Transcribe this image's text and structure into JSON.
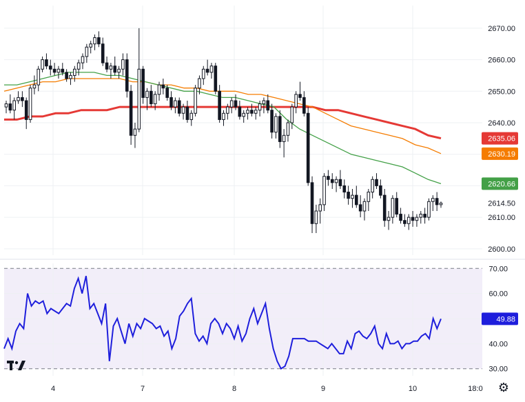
{
  "chart_data": [
    {
      "type": "candlestick",
      "xaxis_labels": [
        "4",
        "7",
        "8",
        "9",
        "10",
        "18:0"
      ],
      "yaxis_ticks": [
        "2670.00",
        "2660.00",
        "2650.00",
        "2640.00",
        "2630.00",
        "2620.00",
        "2610.00",
        "2600.00"
      ],
      "ylim": [
        2598,
        2675
      ],
      "price_tick": "2614.50",
      "grid": true,
      "candles": [
        [
          2645,
          2647,
          2643,
          2646
        ],
        [
          2646,
          2649,
          2643,
          2644
        ],
        [
          2644,
          2648,
          2641,
          2647
        ],
        [
          2647,
          2650,
          2646,
          2648
        ],
        [
          2648,
          2650,
          2645,
          2647
        ],
        [
          2647,
          2648,
          2638,
          2641
        ],
        [
          2641,
          2652,
          2640,
          2651
        ],
        [
          2651,
          2655,
          2649,
          2652
        ],
        [
          2652,
          2658,
          2650,
          2657
        ],
        [
          2657,
          2661,
          2656,
          2660
        ],
        [
          2660,
          2662,
          2657,
          2658
        ],
        [
          2658,
          2660,
          2655,
          2657
        ],
        [
          2657,
          2659,
          2655,
          2656
        ],
        [
          2656,
          2658,
          2654,
          2657
        ],
        [
          2657,
          2659,
          2655,
          2656
        ],
        [
          2656,
          2657,
          2653,
          2654
        ],
        [
          2654,
          2656,
          2652,
          2655
        ],
        [
          2655,
          2658,
          2653,
          2657
        ],
        [
          2657,
          2660,
          2655,
          2659
        ],
        [
          2659,
          2662,
          2657,
          2661
        ],
        [
          2661,
          2665,
          2659,
          2664
        ],
        [
          2664,
          2666,
          2662,
          2665
        ],
        [
          2665,
          2668,
          2663,
          2667
        ],
        [
          2667,
          2669,
          2664,
          2665
        ],
        [
          2665,
          2667,
          2658,
          2659
        ],
        [
          2659,
          2661,
          2656,
          2657
        ],
        [
          2657,
          2659,
          2654,
          2658
        ],
        [
          2658,
          2661,
          2655,
          2656
        ],
        [
          2656,
          2658,
          2654,
          2657
        ],
        [
          2657,
          2662,
          2655,
          2660
        ],
        [
          2660,
          2662,
          2648,
          2650
        ],
        [
          2650,
          2652,
          2633,
          2636
        ],
        [
          2636,
          2640,
          2632,
          2638
        ],
        [
          2638,
          2670,
          2637,
          2657
        ],
        [
          2657,
          2658,
          2646,
          2648
        ],
        [
          2648,
          2651,
          2644,
          2650
        ],
        [
          2650,
          2652,
          2645,
          2646
        ],
        [
          2646,
          2650,
          2644,
          2649
        ],
        [
          2649,
          2653,
          2647,
          2652
        ],
        [
          2652,
          2654,
          2649,
          2651
        ],
        [
          2651,
          2652,
          2647,
          2648
        ],
        [
          2648,
          2650,
          2644,
          2645
        ],
        [
          2645,
          2648,
          2643,
          2647
        ],
        [
          2647,
          2648,
          2642,
          2643
        ],
        [
          2643,
          2646,
          2641,
          2645
        ],
        [
          2645,
          2647,
          2640,
          2641
        ],
        [
          2641,
          2644,
          2639,
          2643
        ],
        [
          2643,
          2652,
          2642,
          2651
        ],
        [
          2651,
          2655,
          2649,
          2654
        ],
        [
          2654,
          2658,
          2652,
          2657
        ],
        [
          2657,
          2660,
          2655,
          2656
        ],
        [
          2656,
          2659,
          2654,
          2658
        ],
        [
          2658,
          2659,
          2649,
          2650
        ],
        [
          2650,
          2652,
          2640,
          2641
        ],
        [
          2641,
          2644,
          2639,
          2643
        ],
        [
          2643,
          2646,
          2641,
          2645
        ],
        [
          2645,
          2648,
          2643,
          2647
        ],
        [
          2647,
          2649,
          2644,
          2645
        ],
        [
          2645,
          2647,
          2641,
          2642
        ],
        [
          2642,
          2644,
          2640,
          2643
        ],
        [
          2643,
          2645,
          2641,
          2644
        ],
        [
          2644,
          2646,
          2642,
          2643
        ],
        [
          2643,
          2645,
          2641,
          2644
        ],
        [
          2644,
          2647,
          2642,
          2646
        ],
        [
          2646,
          2648,
          2643,
          2647
        ],
        [
          2647,
          2649,
          2643,
          2644
        ],
        [
          2644,
          2646,
          2635,
          2637
        ],
        [
          2637,
          2643,
          2635,
          2642
        ],
        [
          2642,
          2644,
          2632,
          2634
        ],
        [
          2634,
          2638,
          2629,
          2636
        ],
        [
          2636,
          2641,
          2634,
          2640
        ],
        [
          2640,
          2646,
          2638,
          2645
        ],
        [
          2645,
          2650,
          2643,
          2649
        ],
        [
          2649,
          2653,
          2647,
          2648
        ],
        [
          2648,
          2650,
          2642,
          2643
        ],
        [
          2643,
          2645,
          2620,
          2621
        ],
        [
          2621,
          2623,
          2605,
          2608
        ],
        [
          2608,
          2614,
          2605,
          2612
        ],
        [
          2612,
          2616,
          2608,
          2614
        ],
        [
          2614,
          2624,
          2612,
          2623
        ],
        [
          2623,
          2625,
          2620,
          2622
        ],
        [
          2622,
          2624,
          2619,
          2621
        ],
        [
          2621,
          2623,
          2618,
          2622
        ],
        [
          2622,
          2625,
          2619,
          2620
        ],
        [
          2620,
          2622,
          2616,
          2618
        ],
        [
          2618,
          2620,
          2614,
          2616
        ],
        [
          2616,
          2619,
          2613,
          2617
        ],
        [
          2617,
          2620,
          2613,
          2614
        ],
        [
          2614,
          2617,
          2610,
          2612
        ],
        [
          2612,
          2616,
          2609,
          2615
        ],
        [
          2615,
          2619,
          2612,
          2618
        ],
        [
          2618,
          2623,
          2616,
          2622
        ],
        [
          2622,
          2624,
          2619,
          2620
        ],
        [
          2620,
          2622,
          2616,
          2617
        ],
        [
          2617,
          2619,
          2607,
          2609
        ],
        [
          2609,
          2612,
          2606,
          2610
        ],
        [
          2610,
          2617,
          2608,
          2616
        ],
        [
          2616,
          2618,
          2610,
          2611
        ],
        [
          2611,
          2613,
          2608,
          2609
        ],
        [
          2609,
          2611,
          2607,
          2608
        ],
        [
          2608,
          2611,
          2606,
          2610
        ],
        [
          2610,
          2612,
          2607,
          2609
        ],
        [
          2609,
          2611,
          2607,
          2610
        ],
        [
          2610,
          2612,
          2608,
          2611
        ],
        [
          2611,
          2613,
          2608,
          2610
        ],
        [
          2610,
          2616,
          2609,
          2615
        ],
        [
          2615,
          2617,
          2612,
          2616
        ],
        [
          2616,
          2618,
          2612,
          2614
        ],
        [
          2614,
          2615,
          2613,
          2614.5
        ]
      ],
      "moving_averages": [
        {
          "color": "#e53935",
          "last": "2635.06",
          "values": [
            2641,
            2641,
            2642,
            2642,
            2643,
            2643,
            2644,
            2644,
            2644,
            2645,
            2645,
            2645,
            2645,
            2645,
            2645,
            2645,
            2645,
            2645,
            2645,
            2645,
            2645,
            2645,
            2645,
            2645,
            2645,
            2644,
            2644,
            2643,
            2642,
            2641,
            2640,
            2639,
            2638,
            2636,
            2635.06
          ]
        },
        {
          "color": "#f57c00",
          "last": "2630.19",
          "values": [
            2650,
            2651,
            2652,
            2653,
            2653,
            2654,
            2654,
            2654,
            2654,
            2654,
            2653,
            2653,
            2652,
            2652,
            2651,
            2651,
            2650,
            2650,
            2650,
            2649,
            2649,
            2648,
            2647,
            2646,
            2645,
            2643,
            2641,
            2639,
            2638,
            2637,
            2636,
            2635,
            2633,
            2632,
            2630.19
          ]
        },
        {
          "color": "#43a047",
          "last": "2620.66",
          "values": [
            2652,
            2652,
            2653,
            2654,
            2655,
            2656,
            2656,
            2656,
            2655,
            2655,
            2654,
            2653,
            2652,
            2651,
            2650,
            2650,
            2649,
            2648,
            2648,
            2647,
            2646,
            2645,
            2641,
            2638,
            2636,
            2634,
            2632,
            2630,
            2629,
            2628,
            2627,
            2626,
            2624,
            2622,
            2620.66
          ]
        }
      ]
    },
    {
      "type": "line",
      "series": [
        {
          "color": "#1e1edc",
          "last": "49.88",
          "values": [
            38,
            42,
            38,
            45,
            48,
            46,
            60,
            55,
            57,
            56,
            57,
            52,
            54,
            53,
            52,
            54,
            56,
            55,
            62,
            66,
            60,
            67,
            54,
            56,
            52,
            48,
            56,
            33,
            47,
            50,
            45,
            40,
            48,
            43,
            48,
            46,
            50,
            49,
            48,
            46,
            47,
            43,
            45,
            38,
            42,
            51,
            53,
            56,
            58,
            44,
            41,
            43,
            40,
            48,
            50,
            48,
            44,
            48,
            46,
            42,
            47,
            41,
            44,
            50,
            54,
            48,
            52,
            56,
            46,
            38,
            33,
            30,
            31,
            35,
            42,
            42,
            42,
            42,
            41,
            41,
            41,
            40,
            39,
            38,
            40,
            38,
            36,
            36,
            41,
            38,
            44,
            45,
            43,
            42,
            44,
            47,
            40,
            38,
            44,
            40,
            40,
            41,
            38,
            40,
            40,
            41,
            41,
            43,
            44,
            42,
            50,
            46,
            49.88
          ]
        }
      ],
      "ylim": [
        28,
        72
      ],
      "yaxis_ticks": [
        "70.00",
        "60.00",
        "50.00",
        "40.00",
        "30.00"
      ],
      "levels": [
        70,
        30
      ]
    }
  ],
  "logo": {
    "text": "TV",
    "icon": "tradingview-logo-icon"
  },
  "settings": {
    "icon": "gear-icon",
    "glyph": "⚙"
  }
}
